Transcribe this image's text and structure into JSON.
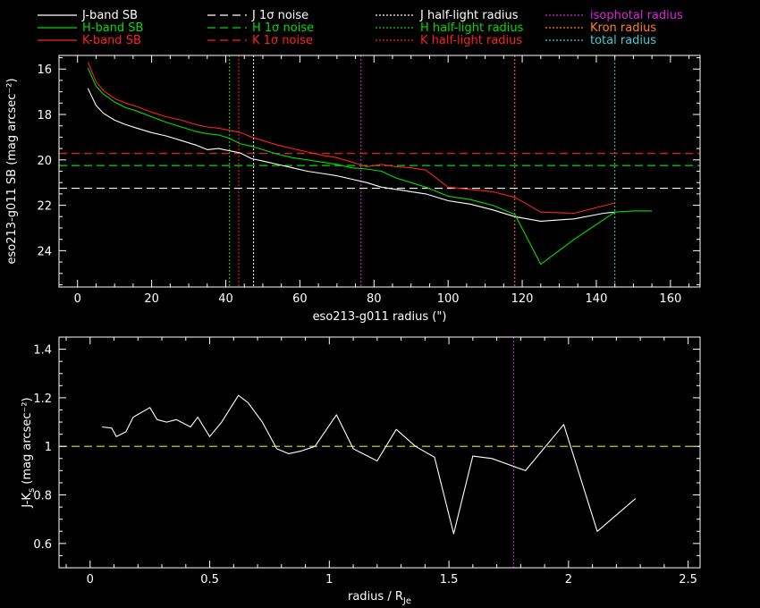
{
  "colors": {
    "background": "#000000",
    "axes": "#ffffff",
    "J": "#ffffff",
    "H": "#00dd00",
    "K": "#ff2020",
    "isophotal": "#dd22dd",
    "kron": "#ff7f20",
    "total": "#40d0d0",
    "one_line": "#e8e020"
  },
  "legend": [
    {
      "label": "J-band SB",
      "style": "solid",
      "color": "#ffffff"
    },
    {
      "label": "H-band SB",
      "style": "solid",
      "color": "#00dd00"
    },
    {
      "label": "K-band SB",
      "style": "solid",
      "color": "#ff2020"
    },
    {
      "label": "J 1σ noise",
      "style": "dashed",
      "color": "#ffffff"
    },
    {
      "label": "H 1σ noise",
      "style": "dashed",
      "color": "#00dd00"
    },
    {
      "label": "K 1σ noise",
      "style": "dashed",
      "color": "#ff2020"
    },
    {
      "label": "J half-light radius",
      "style": "dotted",
      "color": "#ffffff"
    },
    {
      "label": "H half-light radius",
      "style": "dotted",
      "color": "#00dd00"
    },
    {
      "label": "K half-light radius",
      "style": "dotted",
      "color": "#ff2020"
    },
    {
      "label": "isophotal radius",
      "style": "dotted",
      "color": "#dd22dd"
    },
    {
      "label": "Kron radius",
      "style": "dotted",
      "color": "#ff7f20"
    },
    {
      "label": "total radius",
      "style": "dotted",
      "color": "#40d0d0"
    }
  ],
  "chart_data": [
    {
      "type": "line",
      "xlabel": "eso213-g011 radius (\")",
      "ylabel": "eso213-g011 SB (mag arcsec⁻²)",
      "xlim": [
        -5,
        168
      ],
      "ylim": [
        25.6,
        15.4
      ],
      "inverted_y": true,
      "xticks": [
        0,
        20,
        40,
        60,
        80,
        100,
        120,
        140,
        160
      ],
      "yticks": [
        16,
        18,
        20,
        22,
        24
      ],
      "grid": false,
      "legend_position": "top",
      "series": [
        {
          "name": "J-band SB",
          "color": "#ffffff",
          "x": [
            2.8,
            5,
            7,
            10,
            13,
            16,
            20,
            24,
            28,
            32,
            35,
            38,
            41,
            44,
            47,
            50,
            54,
            58,
            62,
            66,
            70,
            74,
            78,
            82,
            86,
            90,
            94,
            100,
            106,
            112,
            118,
            125,
            134,
            142,
            145
          ],
          "y": [
            16.85,
            17.6,
            17.95,
            18.25,
            18.45,
            18.6,
            18.8,
            18.95,
            19.15,
            19.35,
            19.55,
            19.5,
            19.6,
            19.7,
            19.95,
            20.05,
            20.2,
            20.35,
            20.5,
            20.6,
            20.7,
            20.85,
            21.0,
            21.2,
            21.3,
            21.4,
            21.5,
            21.8,
            21.95,
            22.2,
            22.5,
            22.7,
            22.6,
            22.35,
            22.3
          ]
        },
        {
          "name": "H-band SB",
          "color": "#00dd00",
          "x": [
            2.8,
            5,
            7,
            10,
            13,
            16,
            20,
            24,
            28,
            32,
            35,
            38,
            41,
            44,
            47,
            50,
            54,
            58,
            62,
            66,
            70,
            74,
            78,
            82,
            86,
            90,
            94,
            100,
            106,
            112,
            118,
            125,
            134,
            145,
            150,
            155
          ],
          "y": [
            15.95,
            16.75,
            17.1,
            17.45,
            17.7,
            17.85,
            18.1,
            18.35,
            18.55,
            18.75,
            18.85,
            18.9,
            19.05,
            19.3,
            19.4,
            19.55,
            19.75,
            19.9,
            20.0,
            20.1,
            20.2,
            20.35,
            20.4,
            20.5,
            20.8,
            21.0,
            21.2,
            21.6,
            21.75,
            22.0,
            22.4,
            24.6,
            23.5,
            22.3,
            22.25,
            22.25
          ]
        },
        {
          "name": "K-band SB",
          "color": "#ff2020",
          "x": [
            2.8,
            5,
            7,
            10,
            13,
            16,
            20,
            24,
            28,
            32,
            35,
            38,
            41,
            44,
            47,
            50,
            54,
            58,
            62,
            66,
            70,
            74,
            78,
            82,
            86,
            90,
            94,
            100,
            106,
            112,
            118,
            125,
            134,
            145
          ],
          "y": [
            15.7,
            16.55,
            16.95,
            17.3,
            17.5,
            17.65,
            17.9,
            18.1,
            18.25,
            18.45,
            18.55,
            18.6,
            18.7,
            18.8,
            19.0,
            19.15,
            19.35,
            19.5,
            19.65,
            19.8,
            19.9,
            20.1,
            20.3,
            20.2,
            20.3,
            20.35,
            20.45,
            21.2,
            21.3,
            21.4,
            21.65,
            22.3,
            22.35,
            21.9
          ]
        }
      ],
      "hlines": [
        {
          "name": "J 1σ noise",
          "y": 21.25,
          "color": "#ffffff",
          "style": "dashed"
        },
        {
          "name": "H 1σ noise",
          "y": 20.25,
          "color": "#00dd00",
          "style": "dashed"
        },
        {
          "name": "K 1σ noise",
          "y": 19.72,
          "color": "#ff2020",
          "style": "dashed"
        }
      ],
      "vlines": [
        {
          "name": "H half-light radius",
          "x": 41,
          "color": "#00dd00"
        },
        {
          "name": "K half-light radius",
          "x": 43.5,
          "color": "#ff2020"
        },
        {
          "name": "J half-light radius",
          "x": 47.5,
          "color": "#ffffff"
        },
        {
          "name": "isophotal radius",
          "x": 76.5,
          "color": "#dd22dd"
        },
        {
          "name": "Kron radius",
          "x": 118,
          "color": "#ff7f20"
        },
        {
          "name": "total radius",
          "x": 145,
          "color": "#40d0d0"
        }
      ]
    },
    {
      "type": "line",
      "xlabel": "radius / R",
      "xlabel_sub": "Je",
      "ylabel_pre": "J-K",
      "ylabel_sub": "s",
      "ylabel_post": " (mag arcsec⁻²)",
      "xlim": [
        -0.13,
        2.55
      ],
      "ylim": [
        0.5,
        1.45
      ],
      "xticks": [
        0,
        0.5,
        1,
        1.5,
        2,
        2.5
      ],
      "yticks": [
        0.6,
        0.8,
        1,
        1.2,
        1.4
      ],
      "grid": false,
      "series": [
        {
          "name": "J-Ks",
          "color": "#ffffff",
          "x": [
            0.05,
            0.09,
            0.11,
            0.15,
            0.18,
            0.25,
            0.28,
            0.32,
            0.36,
            0.42,
            0.45,
            0.5,
            0.55,
            0.62,
            0.66,
            0.72,
            0.78,
            0.83,
            0.88,
            0.94,
            1.03,
            1.1,
            1.2,
            1.28,
            1.36,
            1.44,
            1.52,
            1.6,
            1.68,
            1.82,
            1.98,
            2.12,
            2.28
          ],
          "y": [
            1.08,
            1.075,
            1.04,
            1.06,
            1.12,
            1.16,
            1.11,
            1.1,
            1.11,
            1.08,
            1.12,
            1.04,
            1.1,
            1.21,
            1.18,
            1.1,
            0.99,
            0.97,
            0.98,
            1.0,
            1.13,
            0.99,
            0.94,
            1.07,
            1.0,
            0.955,
            0.64,
            0.96,
            0.95,
            0.9,
            1.09,
            0.65,
            0.785
          ]
        }
      ],
      "hlines": [
        {
          "name": "J-Ks 1",
          "y": 1.0,
          "color": "#e8e020",
          "style": "dashed"
        }
      ],
      "vlines": [
        {
          "name": "isophotal radius",
          "x": 1.77,
          "color": "#dd22dd"
        }
      ]
    }
  ]
}
